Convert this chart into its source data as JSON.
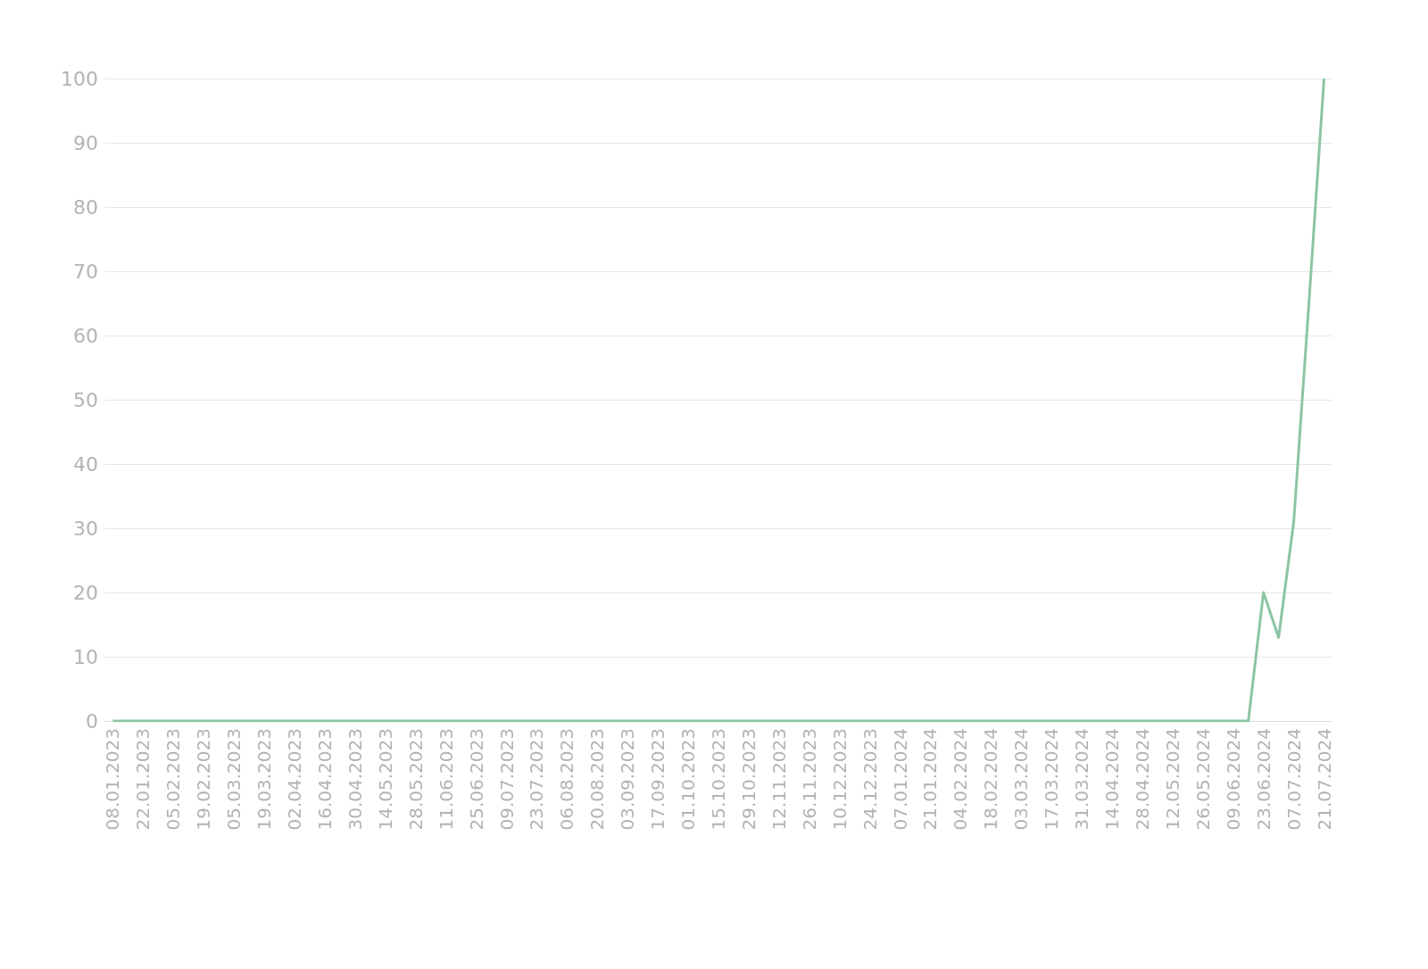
{
  "chart_data": {
    "type": "line",
    "categories": [
      "08.01.2023",
      null,
      "22.01.2023",
      null,
      "05.02.2023",
      null,
      "19.02.2023",
      null,
      "05.03.2023",
      null,
      "19.03.2023",
      null,
      "02.04.2023",
      null,
      "16.04.2023",
      null,
      "30.04.2023",
      null,
      "14.05.2023",
      null,
      "28.05.2023",
      null,
      "11.06.2023",
      null,
      "25.06.2023",
      null,
      "09.07.2023",
      null,
      "23.07.2023",
      null,
      "06.08.2023",
      null,
      "20.08.2023",
      null,
      "03.09.2023",
      null,
      "17.09.2023",
      null,
      "01.10.2023",
      null,
      "15.10.2023",
      null,
      "29.10.2023",
      null,
      "12.11.2023",
      null,
      "26.11.2023",
      null,
      "10.12.2023",
      null,
      "24.12.2023",
      null,
      "07.01.2024",
      null,
      "21.01.2024",
      null,
      "04.02.2024",
      null,
      "18.02.2024",
      null,
      "03.03.2024",
      null,
      "17.03.2024",
      null,
      "31.03.2024",
      null,
      "14.04.2024",
      null,
      "28.04.2024",
      null,
      "12.05.2024",
      null,
      "26.05.2024",
      null,
      "09.06.2024",
      null,
      "23.06.2024",
      null,
      "07.07.2024",
      null,
      "21.07.2024"
    ],
    "series": [
      {
        "color": "#8cc5a4",
        "values": [
          0,
          0,
          0,
          0,
          0,
          0,
          0,
          0,
          0,
          0,
          0,
          0,
          0,
          0,
          0,
          0,
          0,
          0,
          0,
          0,
          0,
          0,
          0,
          0,
          0,
          0,
          0,
          0,
          0,
          0,
          0,
          0,
          0,
          0,
          0,
          0,
          0,
          0,
          0,
          0,
          0,
          0,
          0,
          0,
          0,
          0,
          0,
          0,
          0,
          0,
          0,
          0,
          0,
          0,
          0,
          0,
          0,
          0,
          0,
          0,
          0,
          0,
          0,
          0,
          0,
          0,
          0,
          0,
          0,
          0,
          0,
          0,
          0,
          0,
          0,
          0,
          20,
          13,
          31,
          65,
          100
        ]
      }
    ],
    "ylim": [
      0,
      100
    ],
    "yticks": [
      0,
      10,
      20,
      30,
      40,
      50,
      60,
      70,
      80,
      90,
      100
    ],
    "grid": "y",
    "marker": "none",
    "line_style": "solid"
  }
}
